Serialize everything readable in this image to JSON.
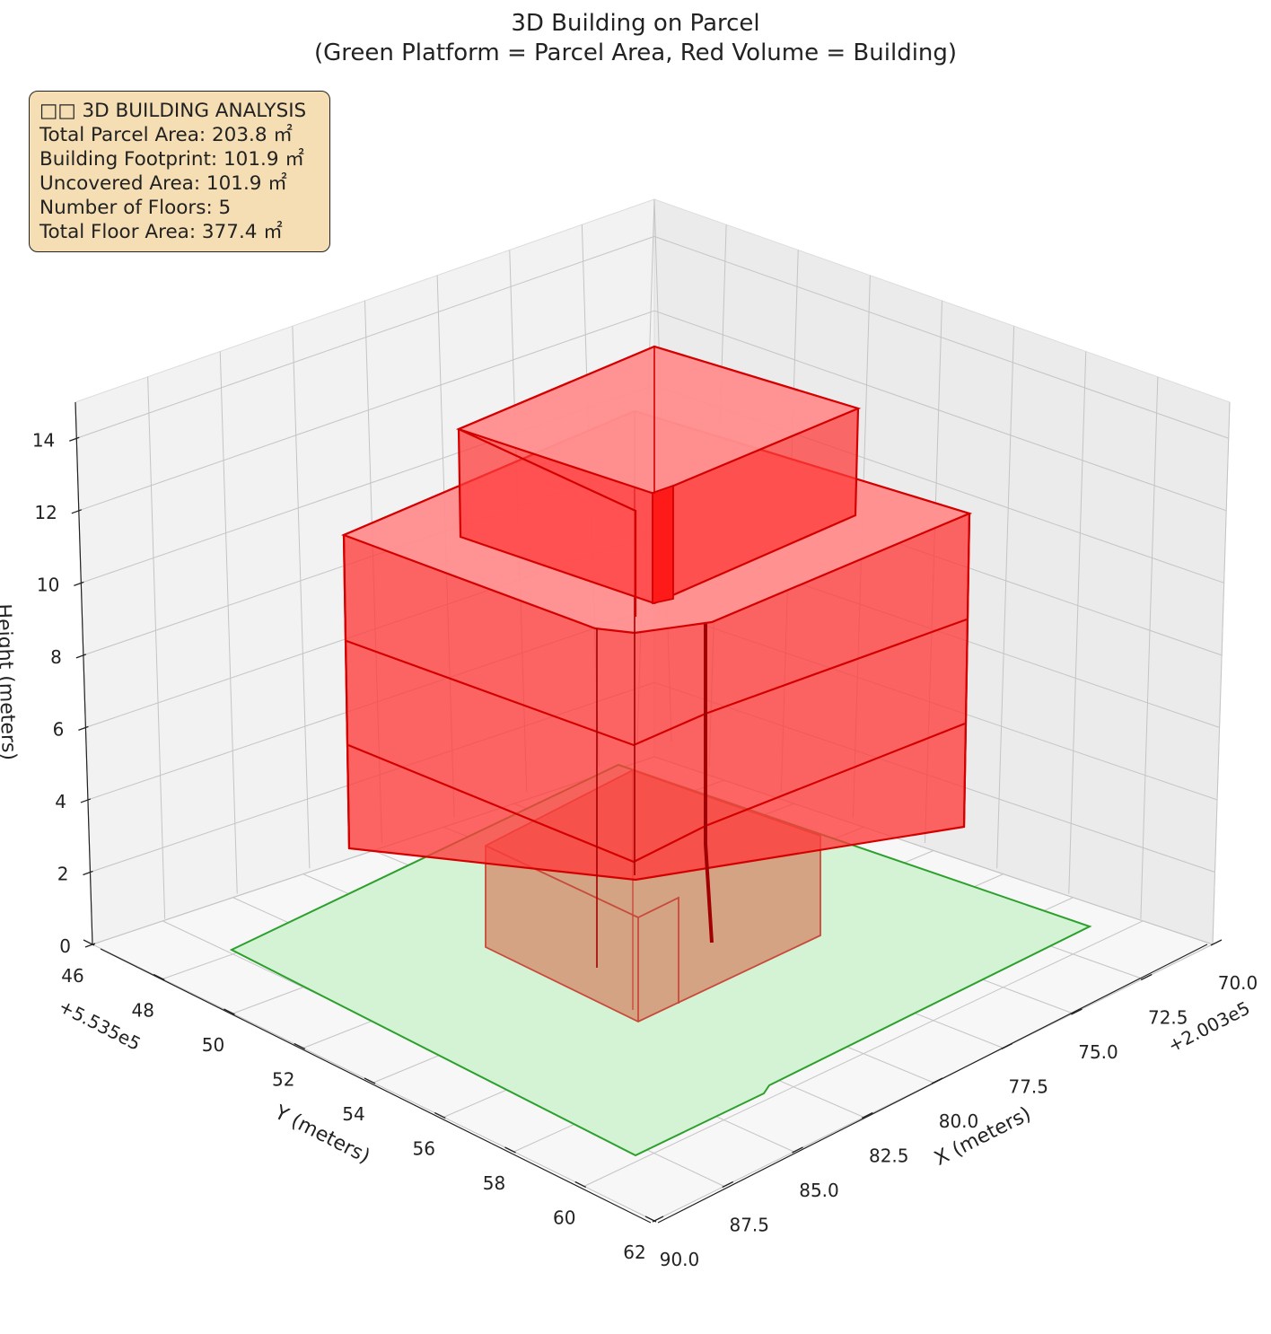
{
  "chart_data": {
    "type": "3d-surface",
    "title_line1": "3D Building on Parcel",
    "title_line2": "(Green Platform = Parcel Area, Red Volume = Building)",
    "xlabel": "X (meters)",
    "ylabel": "Y (meters)",
    "zlabel": "Height (meters)",
    "x_offset_label": "+2.003e5",
    "y_offset_label": "+5.535e5",
    "x_ticks": [
      "70.0",
      "72.5",
      "75.0",
      "77.5",
      "80.0",
      "82.5",
      "85.0",
      "87.5",
      "90.0"
    ],
    "y_ticks": [
      "46",
      "48",
      "50",
      "52",
      "54",
      "56",
      "58",
      "60",
      "62"
    ],
    "z_ticks": [
      "0",
      "2",
      "4",
      "6",
      "8",
      "10",
      "12",
      "14"
    ],
    "xlim": [
      70.0,
      90.0
    ],
    "ylim": [
      46,
      62
    ],
    "zlim": [
      0,
      15
    ],
    "grid": true,
    "parcel_color": "#2ca02c",
    "parcel_fill": "#d4f2d4",
    "building_color": "#ff0000",
    "building_edge": "#d40000",
    "series": [
      {
        "name": "Parcel Area"
      },
      {
        "name": "Building"
      }
    ]
  },
  "info_box": {
    "heading": "□□ 3D BUILDING ANALYSIS",
    "lines": [
      "Total Parcel Area: 203.8 ㎡",
      "Building Footprint: 101.9 ㎡",
      "Uncovered Area: 101.9 ㎡",
      "Number of Floors: 5",
      "Total Floor Area: 377.4 ㎡"
    ]
  }
}
